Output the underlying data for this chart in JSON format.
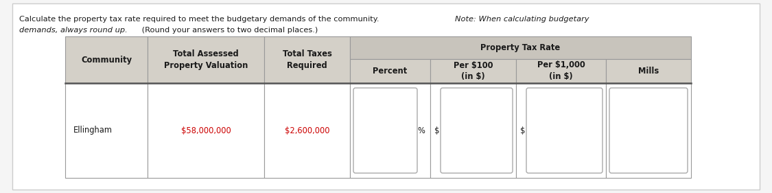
{
  "outer_bg": "#f5f5f5",
  "panel_bg": "#ffffff",
  "header_bg": "#c8c4bc",
  "subheader_bg": "#d4d0c8",
  "row_bg": "#ffffff",
  "border_color": "#999999",
  "thick_border": "#555555",
  "input_box_color": "#ffffff",
  "input_box_border": "#aaaaaa",
  "red_text_color": "#cc0000",
  "black_text_color": "#1a1a1a",
  "instr_line1_normal": "Calculate the property tax rate required to meet the budgetary demands of the community. ",
  "instr_line1_italic": "Note: When calculating budgetary",
  "instr_line2_italic": "demands, always round up.",
  "instr_line2_normal": " (Round your answers to two decimal places.)",
  "col_community": "Community",
  "col_assessed": "Total Assessed\nProperty Valuation",
  "col_taxes": "Total Taxes\nRequired",
  "col_property_tax_rate": "Property Tax Rate",
  "col_percent": "Percent",
  "col_per100": "Per $100\n(in $)",
  "col_per1000": "Per $1,000\n(in $)",
  "col_mills": "Mills",
  "row_community": "Ellingham",
  "row_assessed": "$58,000,000",
  "row_taxes": "$2,600,000",
  "percent_symbol": "%",
  "dollar_symbol": "$"
}
